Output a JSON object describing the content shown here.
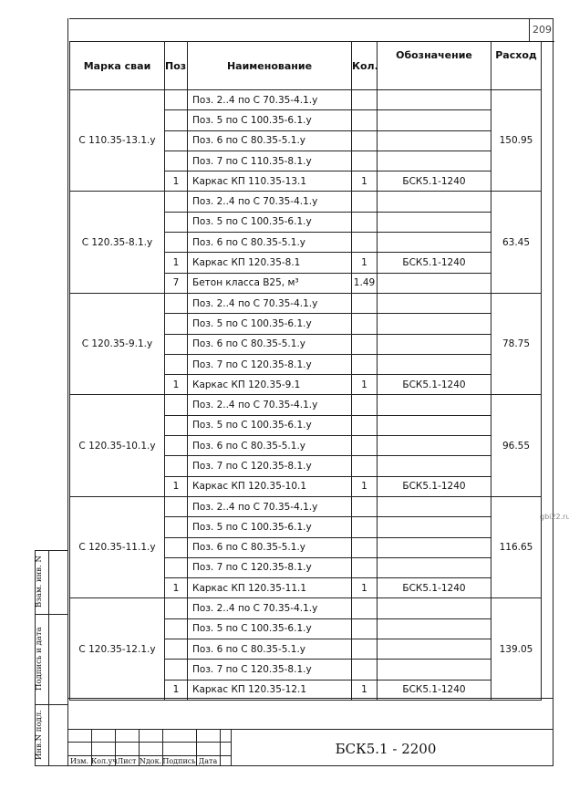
{
  "page_number": "209",
  "watermark": "gbi22.ru",
  "table": {
    "headers": {
      "marka": "Марка сваи",
      "pos": "Поз.",
      "name": "Наименование",
      "qty": "Кол.",
      "designation": "Обозначение",
      "consumption": "Расход"
    },
    "groups": [
      {
        "marka": "С 110.35-13.1.у",
        "consumption": "150.95",
        "rows": [
          {
            "pos": "",
            "name": "Поз. 2..4 по С 70.35-4.1.у",
            "qty": "",
            "designation": ""
          },
          {
            "pos": "",
            "name": "Поз. 5 по С 100.35-6.1.у",
            "qty": "",
            "designation": ""
          },
          {
            "pos": "",
            "name": "Поз. 6 по С 80.35-5.1.у",
            "qty": "",
            "designation": ""
          },
          {
            "pos": "",
            "name": "Поз. 7 по С 110.35-8.1.у",
            "qty": "",
            "designation": ""
          },
          {
            "pos": "1",
            "name": "Каркас КП 110.35-13.1",
            "qty": "1",
            "designation": "БСК5.1-1240"
          }
        ]
      },
      {
        "marka": "С 120.35-8.1.у",
        "consumption": "63.45",
        "rows": [
          {
            "pos": "",
            "name": "Поз. 2..4 по С 70.35-4.1.у",
            "qty": "",
            "designation": ""
          },
          {
            "pos": "",
            "name": "Поз. 5 по С 100.35-6.1.у",
            "qty": "",
            "designation": ""
          },
          {
            "pos": "",
            "name": "Поз. 6 по С 80.35-5.1.у",
            "qty": "",
            "designation": ""
          },
          {
            "pos": "1",
            "name": "Каркас КП 120.35-8.1",
            "qty": "1",
            "designation": "БСК5.1-1240"
          },
          {
            "pos": "7",
            "name": "Бетон класса В25, м³",
            "qty": "1.49",
            "designation": ""
          }
        ]
      },
      {
        "marka": "С 120.35-9.1.у",
        "consumption": "78.75",
        "rows": [
          {
            "pos": "",
            "name": "Поз. 2..4 по С 70.35-4.1.у",
            "qty": "",
            "designation": ""
          },
          {
            "pos": "",
            "name": "Поз. 5 по С 100.35-6.1.у",
            "qty": "",
            "designation": ""
          },
          {
            "pos": "",
            "name": "Поз. 6 по С 80.35-5.1.у",
            "qty": "",
            "designation": ""
          },
          {
            "pos": "",
            "name": "Поз. 7 по С 120.35-8.1.у",
            "qty": "",
            "designation": ""
          },
          {
            "pos": "1",
            "name": "Каркас КП 120.35-9.1",
            "qty": "1",
            "designation": "БСК5.1-1240"
          }
        ]
      },
      {
        "marka": "С 120.35-10.1.у",
        "consumption": "96.55",
        "rows": [
          {
            "pos": "",
            "name": "Поз. 2..4 по С 70.35-4.1.у",
            "qty": "",
            "designation": ""
          },
          {
            "pos": "",
            "name": "Поз. 5 по С 100.35-6.1.у",
            "qty": "",
            "designation": ""
          },
          {
            "pos": "",
            "name": "Поз. 6 по С 80.35-5.1.у",
            "qty": "",
            "designation": ""
          },
          {
            "pos": "",
            "name": "Поз. 7 по С 120.35-8.1.у",
            "qty": "",
            "designation": ""
          },
          {
            "pos": "1",
            "name": "Каркас КП 120.35-10.1",
            "qty": "1",
            "designation": "БСК5.1-1240"
          }
        ]
      },
      {
        "marka": "С 120.35-11.1.у",
        "consumption": "116.65",
        "rows": [
          {
            "pos": "",
            "name": "Поз. 2..4 по С 70.35-4.1.у",
            "qty": "",
            "designation": ""
          },
          {
            "pos": "",
            "name": "Поз. 5 по С 100.35-6.1.у",
            "qty": "",
            "designation": ""
          },
          {
            "pos": "",
            "name": "Поз. 6 по С 80.35-5.1.у",
            "qty": "",
            "designation": ""
          },
          {
            "pos": "",
            "name": "Поз. 7 по С 120.35-8.1.у",
            "qty": "",
            "designation": ""
          },
          {
            "pos": "1",
            "name": "Каркас КП 120.35-11.1",
            "qty": "1",
            "designation": "БСК5.1-1240"
          }
        ]
      },
      {
        "marka": "С 120.35-12.1.у",
        "consumption": "139.05",
        "rows": [
          {
            "pos": "",
            "name": "Поз. 2..4 по С 70.35-4.1.у",
            "qty": "",
            "designation": ""
          },
          {
            "pos": "",
            "name": "Поз. 5 по С 100.35-6.1.у",
            "qty": "",
            "designation": ""
          },
          {
            "pos": "",
            "name": "Поз. 6 по С 80.35-5.1.у",
            "qty": "",
            "designation": ""
          },
          {
            "pos": "",
            "name": "Поз. 7 по С 120.35-8.1.у",
            "qty": "",
            "designation": ""
          },
          {
            "pos": "1",
            "name": "Каркас КП 120.35-12.1",
            "qty": "1",
            "designation": "БСК5.1-1240"
          }
        ]
      }
    ]
  },
  "title_block": {
    "doc_code": "БСК5.1 - 2200",
    "stamp_headers": [
      "Изм.",
      "Кол.уч",
      "Лист",
      "Nдок.",
      "Подпись",
      "Дата"
    ]
  },
  "side_labels": {
    "replace_inv": "Взам. инв. N",
    "signature_date": "Подпись и дата",
    "inv_orig": "Инв.N подл."
  }
}
